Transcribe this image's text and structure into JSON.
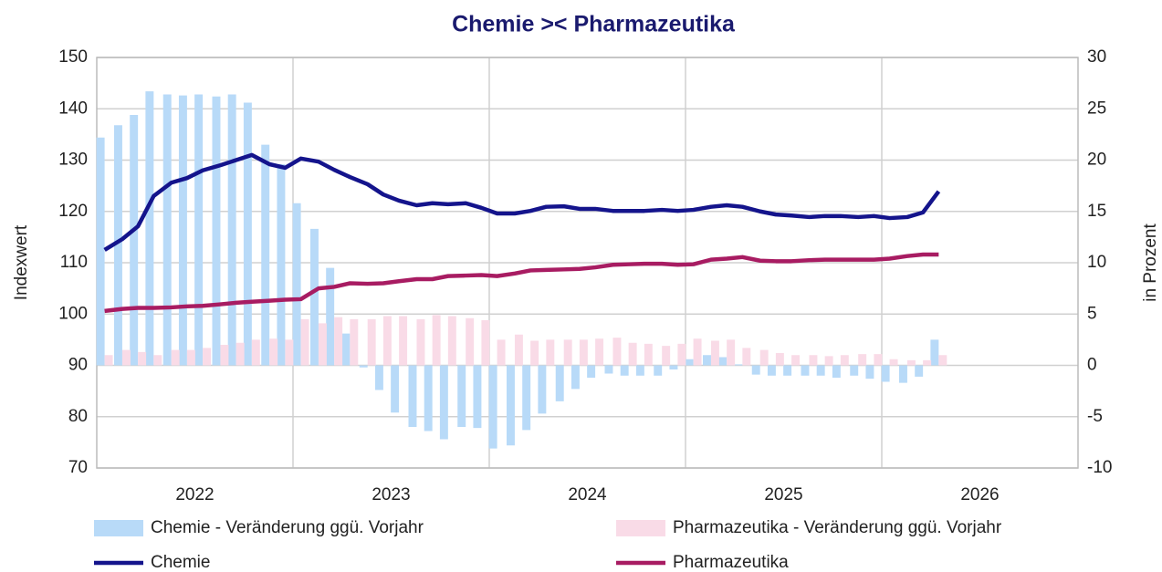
{
  "chart_data": {
    "type": "combo",
    "title": "Chemie  ><  Pharmazeutika",
    "ylabel": "Indexwert",
    "y2label": "in Prozent",
    "x": [
      2022.04,
      2022.13,
      2022.21,
      2022.29,
      2022.38,
      2022.46,
      2022.54,
      2022.63,
      2022.71,
      2022.79,
      2022.88,
      2022.96,
      2023.04,
      2023.13,
      2023.21,
      2023.29,
      2023.38,
      2023.46,
      2023.54,
      2023.63,
      2023.71,
      2023.79,
      2023.88,
      2023.96,
      2024.04,
      2024.13,
      2024.21,
      2024.29,
      2024.38,
      2024.46,
      2024.54,
      2024.63,
      2024.71,
      2024.79,
      2024.88,
      2024.96,
      2025.04,
      2025.13,
      2025.21,
      2025.29,
      2025.38,
      2025.46,
      2025.54,
      2025.63,
      2025.71,
      2025.79,
      2025.88,
      2025.96,
      2026.04,
      2026.13,
      2026.21,
      2026.29
    ],
    "xlim": [
      2022,
      2027
    ],
    "xticks": [
      {
        "value": 2022.5,
        "label": "2022"
      },
      {
        "value": 2023.5,
        "label": "2023"
      },
      {
        "value": 2024.5,
        "label": "2024"
      },
      {
        "value": 2025.5,
        "label": "2025"
      },
      {
        "value": 2026.5,
        "label": "2026"
      }
    ],
    "xgridlines": [
      2023,
      2024,
      2025,
      2026
    ],
    "ylim": [
      70,
      150
    ],
    "yticks": [
      70,
      80,
      90,
      100,
      110,
      120,
      130,
      140,
      150
    ],
    "y2lim": [
      -10,
      30
    ],
    "y2ticks": [
      -10,
      -5,
      0,
      5,
      10,
      15,
      20,
      25,
      30
    ],
    "grid": true,
    "series": [
      {
        "name": "Chemie - Veränderung ggü. Vorjahr",
        "type": "bar",
        "axis": "y2",
        "color": "#b8daf8",
        "values": [
          22.2,
          23.4,
          24.4,
          26.7,
          26.4,
          26.3,
          26.4,
          26.2,
          26.4,
          25.6,
          21.5,
          19.6,
          15.8,
          13.3,
          9.5,
          3.1,
          -0.2,
          -2.4,
          -4.6,
          -6,
          -6.4,
          -7.2,
          -6,
          -6.1,
          -8.1,
          -7.8,
          -6.3,
          -4.7,
          -3.5,
          -2.3,
          -1.2,
          -0.8,
          -1,
          -1,
          -1,
          -0.4,
          0.6,
          1,
          0.8,
          0.1,
          -0.9,
          -1,
          -1,
          -1,
          -1,
          -1.2,
          -1,
          -1.3,
          -1.6,
          -1.7,
          -1.1,
          2.5
        ]
      },
      {
        "name": "Pharmazeutika - Veränderung ggü. Vorjahr",
        "type": "bar",
        "axis": "y2",
        "color": "#f9dbe7",
        "values": [
          1,
          1.5,
          1.3,
          1,
          1.5,
          1.5,
          1.7,
          2,
          2.2,
          2.5,
          2.6,
          2.5,
          4.5,
          4.1,
          4.7,
          4.5,
          4.5,
          4.8,
          4.8,
          4.5,
          4.9,
          4.8,
          4.6,
          4.4,
          2.5,
          3,
          2.4,
          2.5,
          2.5,
          2.5,
          2.6,
          2.7,
          2.2,
          2.1,
          1.9,
          2.1,
          2.6,
          2.4,
          2.5,
          1.7,
          1.5,
          1.2,
          1,
          1,
          0.9,
          1,
          1.1,
          1.1,
          0.6,
          0.5,
          0.5,
          1
        ]
      },
      {
        "name": "Chemie",
        "type": "line",
        "color": "#14148c",
        "values": [
          112.5,
          114.6,
          117.1,
          123,
          125.6,
          126.5,
          128,
          129,
          130,
          131,
          129.2,
          128.5,
          130.3,
          129.7,
          128.1,
          126.7,
          125.3,
          123.3,
          122.1,
          121.2,
          121.6,
          121.4,
          121.6,
          120.7,
          119.6,
          119.6,
          120.1,
          120.9,
          121,
          120.5,
          120.5,
          120.1,
          120.1,
          120.1,
          120.3,
          120.1,
          120.3,
          120.9,
          121.2,
          120.9,
          120,
          119.4,
          119.2,
          118.9,
          119.1,
          119.1,
          118.9,
          119.1,
          118.7,
          118.9,
          119.8,
          123.9
        ]
      },
      {
        "name": "Pharmazeutika",
        "type": "line",
        "color": "#a81c62",
        "values": [
          100.6,
          101,
          101.2,
          101.2,
          101.3,
          101.5,
          101.6,
          101.9,
          102.2,
          102.4,
          102.6,
          102.8,
          102.9,
          105,
          105.3,
          106,
          105.9,
          106,
          106.4,
          106.8,
          106.8,
          107.4,
          107.5,
          107.6,
          107.4,
          107.9,
          108.5,
          108.6,
          108.7,
          108.8,
          109.1,
          109.6,
          109.7,
          109.8,
          109.8,
          109.6,
          109.7,
          110.6,
          110.8,
          111.1,
          110.4,
          110.3,
          110.3,
          110.5,
          110.6,
          110.6,
          110.6,
          110.6,
          110.8,
          111.3,
          111.6,
          111.6
        ]
      }
    ]
  }
}
